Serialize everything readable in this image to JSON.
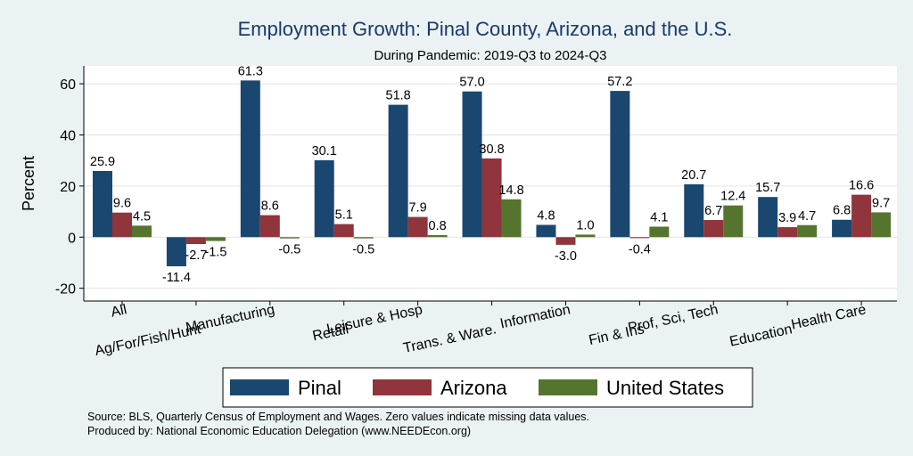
{
  "chart_data": {
    "type": "bar",
    "title": "Employment Growth: Pinal County, Arizona, and the U.S.",
    "subtitle": "During Pandemic: 2019-Q3 to 2024-Q3",
    "xlabel": "",
    "ylabel": "Percent",
    "ylim": [
      -25,
      67
    ],
    "yticks": [
      -20,
      0,
      20,
      40,
      60
    ],
    "ytick_labels": [
      "-20",
      "0",
      "20",
      "40",
      "60"
    ],
    "grid": true,
    "legend_position": "bottom",
    "categories": [
      "All",
      "Ag/For/Fish/Hunt",
      "Manufacturing",
      "Retail",
      "Leisure & Hosp",
      "Trans. & Ware.",
      "Information",
      "Fin & Ins",
      "Prof, Sci, Tech",
      "Education",
      "Health Care"
    ],
    "series": [
      {
        "name": "Pinal",
        "color": "#1a476f",
        "values": [
          25.9,
          -11.4,
          61.3,
          30.1,
          51.8,
          57.0,
          4.8,
          57.2,
          20.7,
          15.7,
          6.8
        ],
        "labels": [
          "25.9",
          "-11.4",
          "61.3",
          "30.1",
          "51.8",
          "57.0",
          "4.8",
          "57.2",
          "20.7",
          "15.7",
          "6.8"
        ]
      },
      {
        "name": "Arizona",
        "color": "#90353b",
        "values": [
          9.6,
          -2.7,
          8.6,
          5.1,
          7.9,
          30.8,
          -3.0,
          -0.4,
          6.7,
          3.9,
          16.6
        ],
        "labels": [
          "9.6",
          "-2.7",
          "8.6",
          "5.1",
          "7.9",
          "30.8",
          "-3.0",
          "-0.4",
          "6.7",
          "3.9",
          "16.6"
        ]
      },
      {
        "name": "United States",
        "color": "#55752f",
        "values": [
          4.5,
          -1.5,
          -0.5,
          -0.5,
          0.8,
          14.8,
          1.0,
          4.1,
          12.4,
          4.7,
          9.7
        ],
        "labels": [
          "4.5",
          "-1.5",
          "-0.5",
          "-0.5",
          "0.8",
          "14.8",
          "1.0",
          "4.1",
          "12.4",
          "4.7",
          "9.7"
        ]
      }
    ]
  },
  "notes": {
    "source": "Source: BLS, Quarterly Census of Employment and Wages. Zero values indicate missing data values.",
    "produced": "Produced by: National Economic Education Delegation (www.NEEDEcon.org)"
  }
}
